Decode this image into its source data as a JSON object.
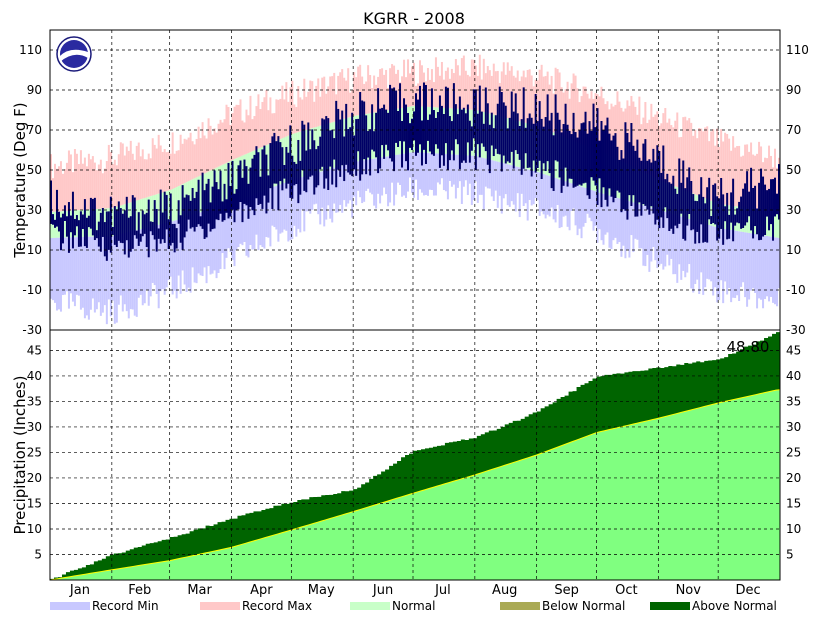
{
  "chart_data": {
    "type": "area",
    "title": "KGRR - 2008",
    "top_panel": {
      "ylabel": "Temperature (Deg F)",
      "yticks": [
        110,
        90,
        70,
        50,
        30,
        10,
        -10,
        -30
      ],
      "ylim": [
        -30,
        120
      ],
      "grid": true,
      "anchors_doy": [
        0,
        31,
        60,
        91,
        121,
        152,
        182,
        213,
        244,
        274,
        305,
        335,
        365
      ],
      "record_max": [
        52,
        56,
        64,
        78,
        88,
        96,
        99,
        101,
        97,
        88,
        76,
        64,
        56
      ],
      "record_min": [
        -16,
        -21,
        -10,
        5,
        22,
        33,
        40,
        38,
        30,
        20,
        3,
        -10,
        -16
      ],
      "normal_max": [
        29,
        31,
        40,
        55,
        68,
        77,
        82,
        80,
        72,
        60,
        45,
        33,
        29
      ],
      "normal_min": [
        16,
        17,
        24,
        34,
        45,
        54,
        59,
        57,
        49,
        39,
        30,
        21,
        16
      ],
      "observed_max_approx": [
        35,
        28,
        30,
        45,
        63,
        78,
        84,
        82,
        80,
        72,
        55,
        35,
        45
      ],
      "observed_min_approx": [
        18,
        12,
        14,
        28,
        40,
        52,
        58,
        58,
        50,
        40,
        25,
        18,
        22
      ]
    },
    "bottom_panel": {
      "ylabel": "Precipitation (Inches)",
      "yticks": [
        45,
        40,
        35,
        30,
        25,
        20,
        15,
        10,
        5
      ],
      "ylim": [
        0,
        49
      ],
      "grid": true,
      "annotation": "48.80",
      "anchors_doy": [
        0,
        31,
        60,
        91,
        121,
        152,
        182,
        213,
        244,
        274,
        305,
        335,
        365
      ],
      "observed_cumulative": [
        0.3,
        5.2,
        8.5,
        12.3,
        15.6,
        17.9,
        25.6,
        28.2,
        33.2,
        40.2,
        41.8,
        43.5,
        48.8
      ],
      "normal_cumulative": [
        0,
        2.0,
        3.8,
        6.4,
        9.8,
        13.4,
        17.0,
        20.6,
        24.5,
        28.9,
        31.7,
        34.7,
        37.3
      ]
    },
    "x_categories": [
      "Jan",
      "Feb",
      "Mar",
      "Apr",
      "May",
      "Jun",
      "Jul",
      "Aug",
      "Sep",
      "Oct",
      "Nov",
      "Dec"
    ],
    "legend": [
      {
        "name": "Record Min",
        "color": "#c8c8ff"
      },
      {
        "name": "Record Max",
        "color": "#ffc8c8"
      },
      {
        "name": "Normal",
        "color": "#c8ffc8"
      },
      {
        "name": "Below Normal",
        "color": "#aaaa55"
      },
      {
        "name": "Above Normal",
        "color": "#006400"
      }
    ],
    "colors": {
      "observed_temp": "#000066",
      "normal_precip_fill": "#80ff80",
      "normal_line": "#ffff00"
    },
    "logo": "noaa-logo"
  }
}
